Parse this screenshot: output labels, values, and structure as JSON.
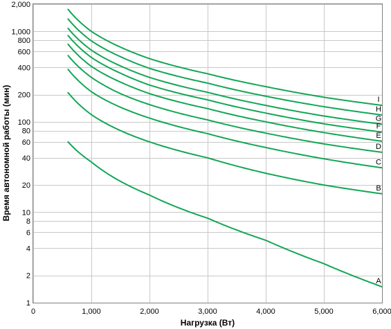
{
  "chart_data": {
    "type": "line",
    "title": "",
    "xlabel": "Нагрузка (Вт)",
    "ylabel": "Время автономной работы (мин)",
    "xlim": [
      0,
      6000
    ],
    "ylim": [
      1,
      2000
    ],
    "yscale": "log",
    "grid": true,
    "line_color": "#13a655",
    "x_ticks": [
      {
        "value": 0,
        "label": "0"
      },
      {
        "value": 1000,
        "label": "1,000"
      },
      {
        "value": 2000,
        "label": "2,000"
      },
      {
        "value": 3000,
        "label": "3,000"
      },
      {
        "value": 4000,
        "label": "4,000"
      },
      {
        "value": 5000,
        "label": "5,000"
      },
      {
        "value": 6000,
        "label": "6,000"
      }
    ],
    "y_ticks": [
      {
        "value": 1,
        "label": "1"
      },
      {
        "value": 2,
        "label": "2"
      },
      {
        "value": 4,
        "label": "4"
      },
      {
        "value": 6,
        "label": "6"
      },
      {
        "value": 8,
        "label": "8"
      },
      {
        "value": 10,
        "label": "10"
      },
      {
        "value": 20,
        "label": "20"
      },
      {
        "value": 40,
        "label": "40"
      },
      {
        "value": 60,
        "label": "60"
      },
      {
        "value": 80,
        "label": "80"
      },
      {
        "value": 100,
        "label": "100"
      },
      {
        "value": 200,
        "label": "200"
      },
      {
        "value": 400,
        "label": "400"
      },
      {
        "value": 600,
        "label": "600"
      },
      {
        "value": 800,
        "label": "800"
      },
      {
        "value": 1000,
        "label": "1,000"
      },
      {
        "value": 2000,
        "label": "2,000"
      }
    ],
    "x": [
      600,
      1000,
      1500,
      2000,
      3000,
      4000,
      5000,
      6000
    ],
    "series": [
      {
        "name": "A",
        "values": [
          60,
          36,
          22,
          15.5,
          8.6,
          4.9,
          2.7,
          1.5
        ]
      },
      {
        "name": "B",
        "values": [
          210,
          120,
          80,
          60,
          40,
          27,
          20,
          16
        ]
      },
      {
        "name": "C",
        "values": [
          380,
          215,
          145,
          110,
          74,
          52,
          39,
          31
        ]
      },
      {
        "name": "D",
        "values": [
          540,
          310,
          205,
          155,
          105,
          75,
          57,
          46
        ]
      },
      {
        "name": "E",
        "values": [
          720,
          410,
          275,
          205,
          140,
          100,
          76,
          61
        ]
      },
      {
        "name": "F",
        "values": [
          900,
          515,
          345,
          255,
          175,
          125,
          95,
          77
        ]
      },
      {
        "name": "G",
        "values": [
          1080,
          620,
          415,
          310,
          212,
          152,
          116,
          94
        ]
      },
      {
        "name": "H",
        "values": [
          1370,
          785,
          525,
          390,
          268,
          192,
          147,
          119
        ]
      },
      {
        "name": "I",
        "values": [
          1750,
          1000,
          670,
          500,
          340,
          245,
          187,
          152
        ]
      }
    ]
  }
}
